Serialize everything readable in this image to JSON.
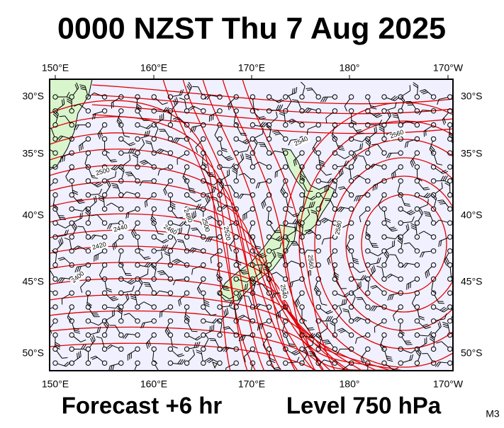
{
  "title": "0000 NZST Thu 7 Aug 2025",
  "map": {
    "lon_labels": [
      "150°E",
      "160°E",
      "170°E",
      "180°",
      "170°W"
    ],
    "lat_labels": [
      "30°S",
      "35°S",
      "40°S",
      "45°S",
      "50°S"
    ],
    "contour_labels": [
      "2560",
      "2540",
      "2500",
      "2480",
      "2500",
      "2520",
      "2460",
      "2440",
      "2420",
      "2400",
      "2580",
      "2560",
      "2540"
    ]
  },
  "footer": {
    "forecast": "Forecast +6 hr",
    "level": "Level 750 hPa",
    "code": "M3"
  }
}
